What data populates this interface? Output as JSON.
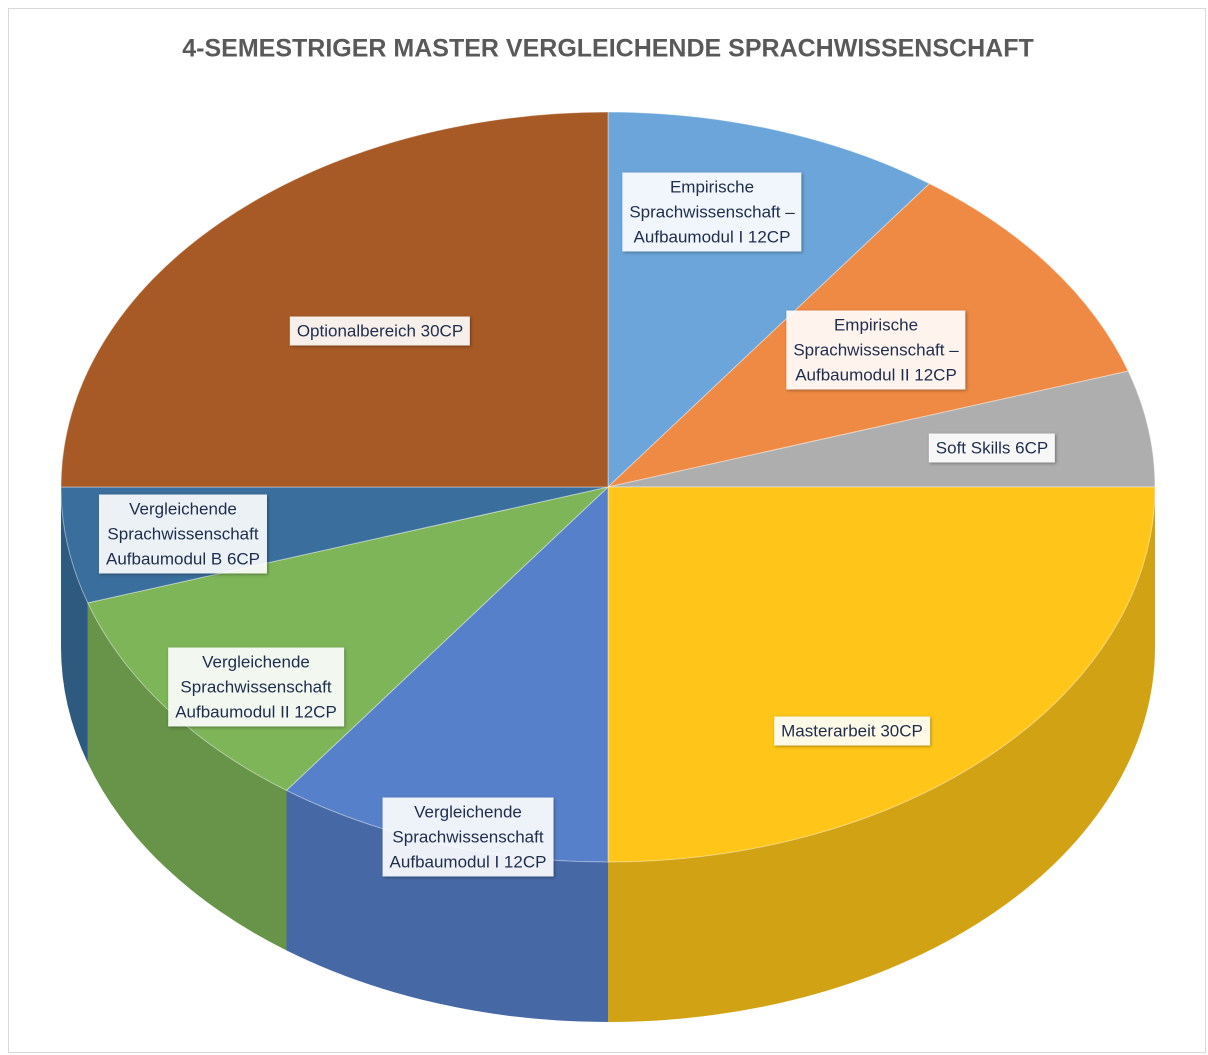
{
  "chart_data": {
    "type": "pie3d",
    "title": "4-SEMESTRIGER MASTER VERGLEICHENDE SPRACHWISSENSCHAFT",
    "categories": [
      "Empirische\nSprachwissenschaft –\nAufbaumodul I 12CP",
      "Empirische\nSprachwissenschaft –\nAufbaumodul II 12CP",
      "Soft Skills 6CP",
      "Masterarbeit 30CP",
      "Vergleichende\nSprachwissenschaft\nAufbaumodul I 12CP",
      "Vergleichende\nSprachwissenschaft\nAufbaumodul II 12CP",
      "Vergleichende\nSprachwissenschaft\nAufbaumodul B 6CP",
      "Optionalbereich 30CP"
    ],
    "values": [
      12,
      12,
      6,
      30,
      12,
      12,
      6,
      30
    ],
    "colors": [
      "#5b9bd5",
      "#ed7d31",
      "#a5a5a5",
      "#ffc000",
      "#4472c4",
      "#70ad47",
      "#255e91",
      "#9e480e"
    ]
  }
}
